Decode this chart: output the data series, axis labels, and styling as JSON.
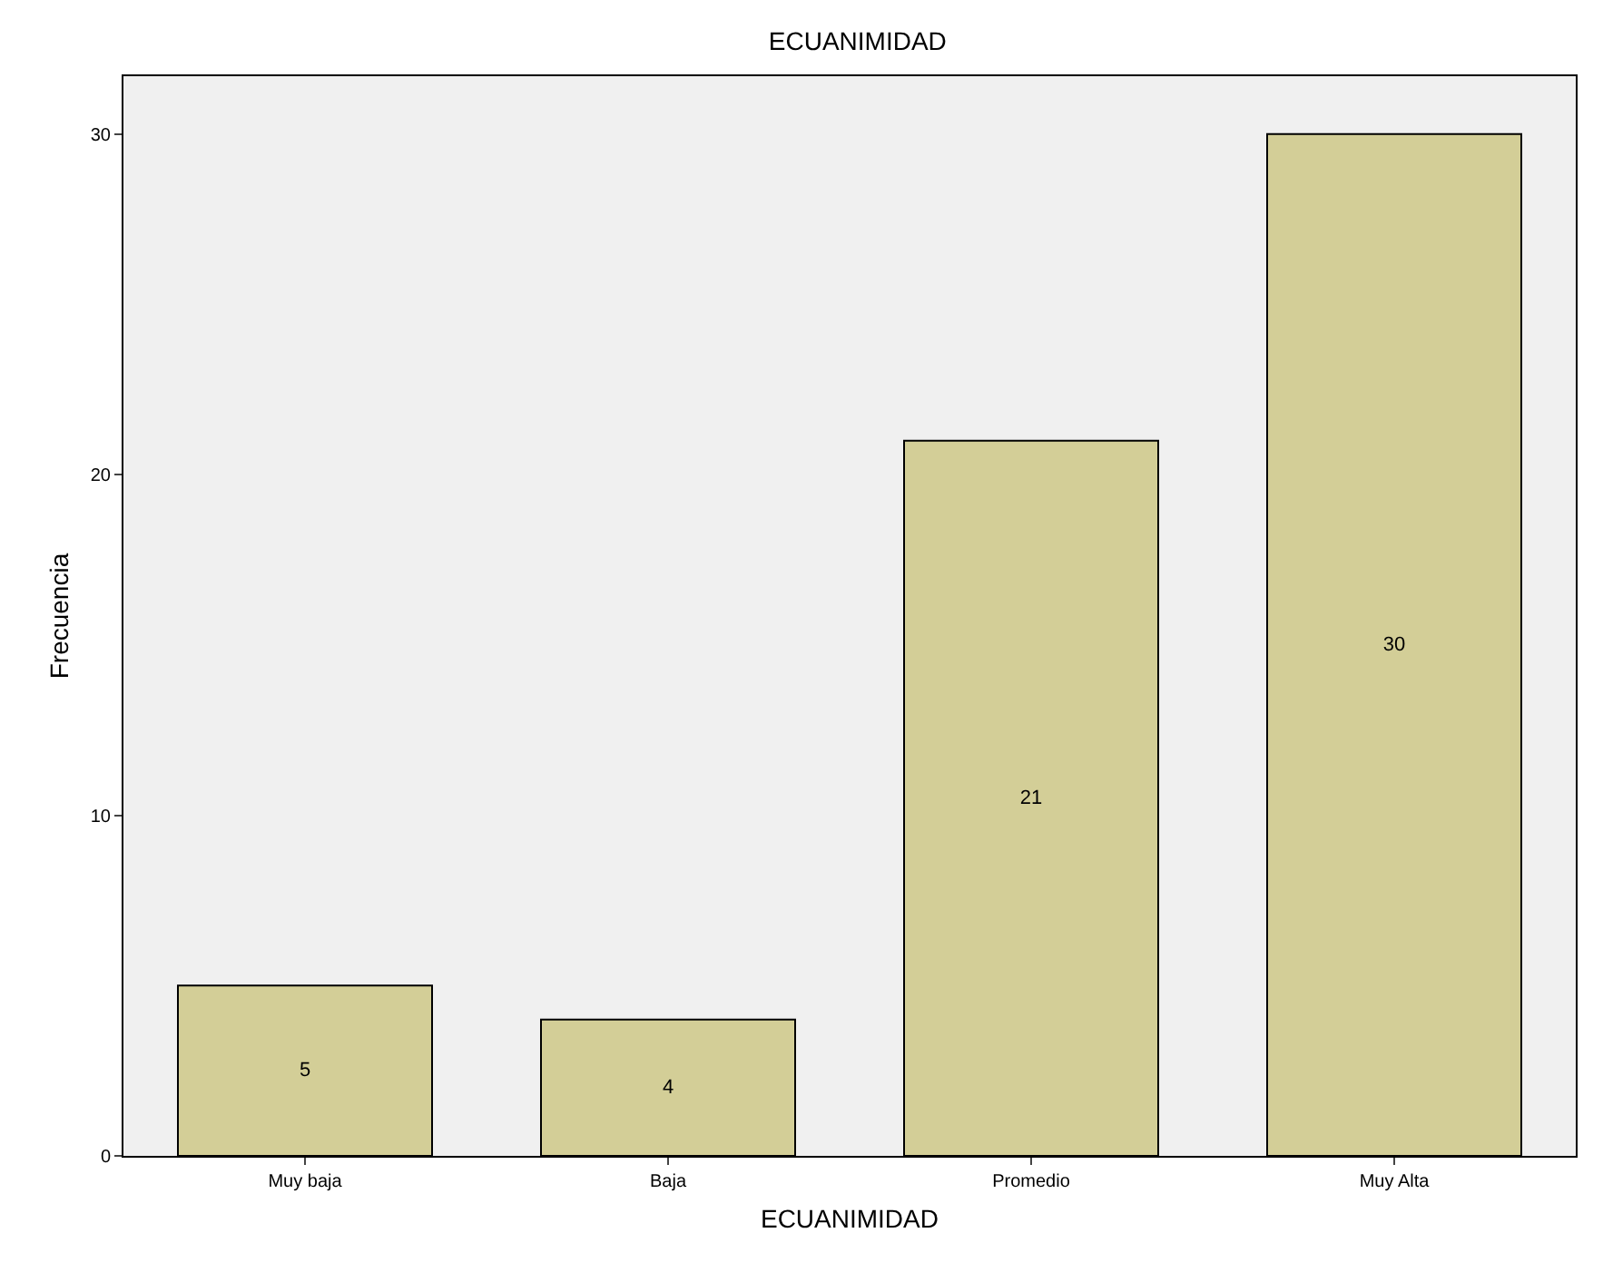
{
  "chart_data": {
    "type": "bar",
    "title": "ECUANIMIDAD",
    "xlabel": "ECUANIMIDAD",
    "ylabel": "Frecuencia",
    "categories": [
      "Muy baja",
      "Baja",
      "Promedio",
      "Muy Alta"
    ],
    "values": [
      5,
      4,
      21,
      30
    ],
    "color": "#d3ce97",
    "ylim": [
      0,
      31.7
    ],
    "yticks": [
      0,
      10,
      20,
      30
    ],
    "grid": false,
    "data_labels": true
  }
}
